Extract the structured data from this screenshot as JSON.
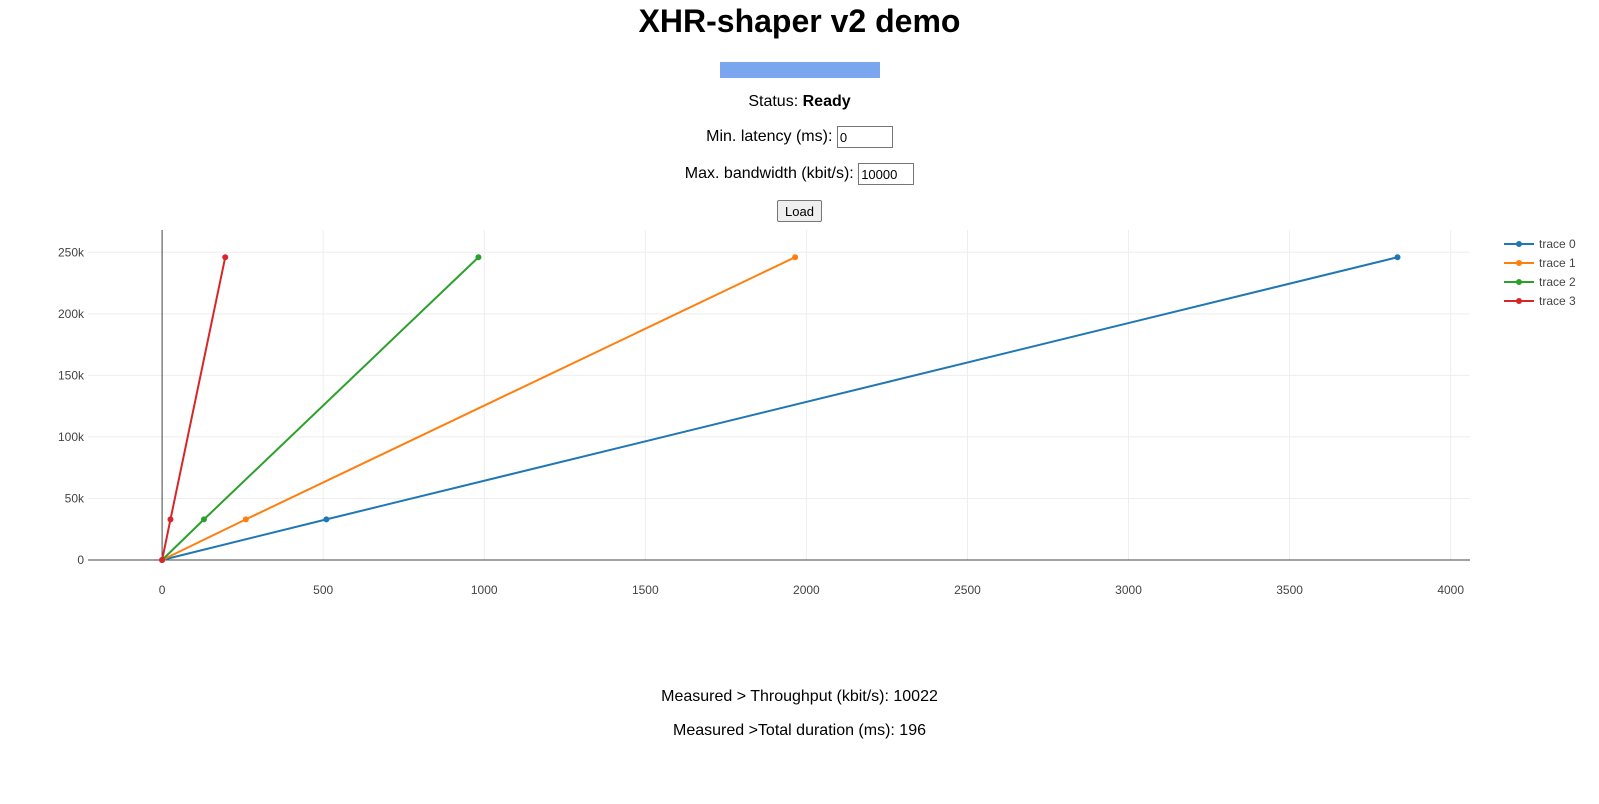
{
  "page": {
    "title": "XHR-shaper v2 demo"
  },
  "progress": {
    "fraction": 1.0,
    "color": "#7aa6f0"
  },
  "status": {
    "label": "Status:",
    "value": "Ready"
  },
  "latency": {
    "label": "Min. latency (ms):",
    "value": "0"
  },
  "bandwidth": {
    "label": "Max. bandwidth (kbit/s):",
    "value": "10000"
  },
  "load_button": {
    "label": "Load"
  },
  "measured": {
    "throughput_text": "Measured > Throughput (kbit/s): 10022",
    "duration_text": "Measured >Total duration (ms): 196"
  },
  "chart_data": {
    "type": "line",
    "xlim": [
      -230,
      4060
    ],
    "ylim": [
      0,
      260000
    ],
    "x_ticks": [
      0,
      500,
      1000,
      1500,
      2000,
      2500,
      3000,
      3500,
      4000
    ],
    "x_tick_labels": [
      "0",
      "500",
      "1000",
      "1500",
      "2000",
      "2500",
      "3000",
      "3500",
      "4000"
    ],
    "y_ticks": [
      0,
      50000,
      100000,
      150000,
      200000,
      250000
    ],
    "y_tick_labels": [
      "0",
      "50k",
      "100k",
      "150k",
      "200k",
      "250k"
    ],
    "grid": true,
    "legend_position": "top-right",
    "series": [
      {
        "name": "trace 0",
        "color": "#1f77b4",
        "x": [
          0,
          510,
          3835
        ],
        "y": [
          0,
          33000,
          246000
        ]
      },
      {
        "name": "trace 1",
        "color": "#ff7f0e",
        "x": [
          0,
          260,
          1965
        ],
        "y": [
          0,
          33000,
          246000
        ]
      },
      {
        "name": "trace 2",
        "color": "#2ca02c",
        "x": [
          0,
          130,
          982
        ],
        "y": [
          0,
          33000,
          246000
        ]
      },
      {
        "name": "trace 3",
        "color": "#d62728",
        "x": [
          0,
          26,
          196
        ],
        "y": [
          0,
          33000,
          246000
        ]
      }
    ]
  }
}
